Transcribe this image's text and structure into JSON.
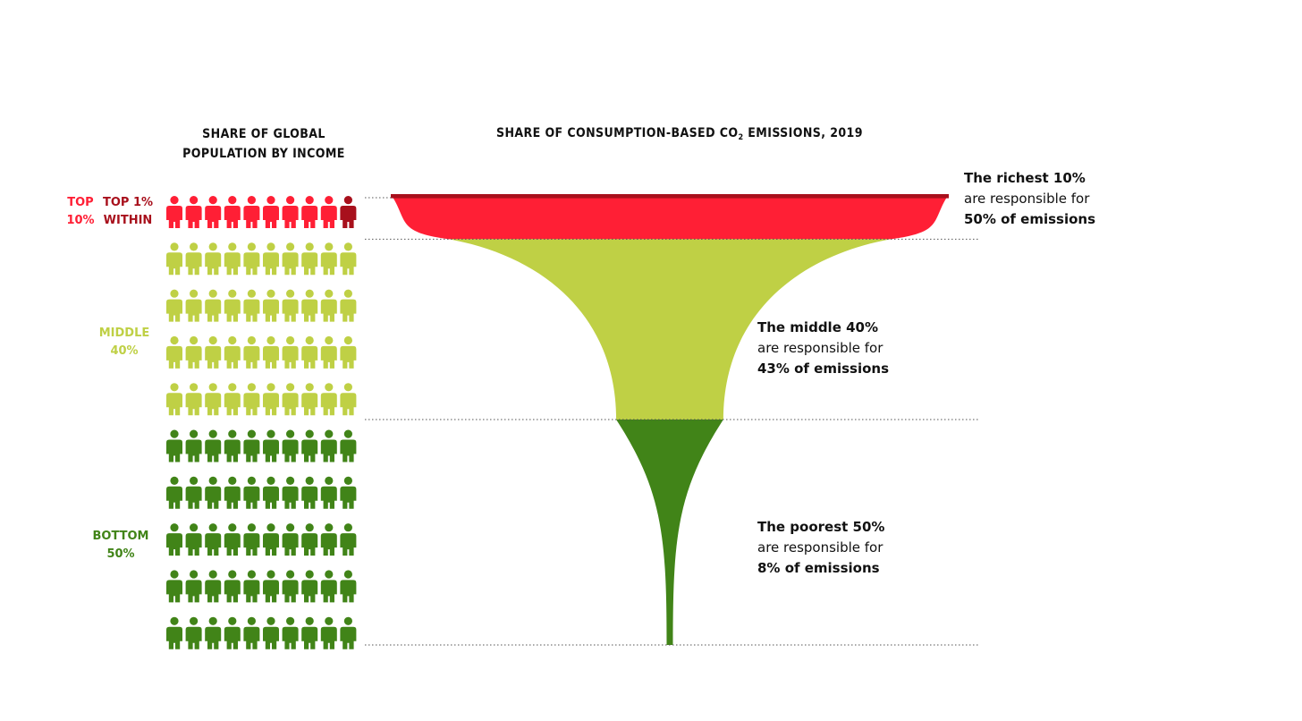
{
  "chart_data": {
    "type": "funnel",
    "population_title_lines": [
      "SHARE OF GLOBAL",
      "POPULATION BY INCOME"
    ],
    "emissions_title_main": "SHARE OF CONSUMPTION-BASED CO",
    "emissions_title_sub": "2",
    "emissions_title_rest": " EMISSIONS, 2019",
    "groups": [
      {
        "key": "top",
        "label_lines": [
          "TOP",
          "10%"
        ],
        "inner_label_lines": [
          "TOP 1%",
          "WITHIN"
        ],
        "population_share": 10,
        "emissions_share": 50,
        "color": "#ff1f35",
        "highlight_color": "#a8101c",
        "annotation": [
          "The richest 10%",
          "are responsible for",
          "50% of emissions"
        ]
      },
      {
        "key": "middle",
        "label_lines": [
          "MIDDLE",
          "40%"
        ],
        "population_share": 40,
        "emissions_share": 43,
        "color": "#bfd045",
        "annotation": [
          "The middle 40%",
          "are responsible for",
          "43% of emissions"
        ]
      },
      {
        "key": "bottom",
        "label_lines": [
          "BOTTOM",
          "50%"
        ],
        "population_share": 50,
        "emissions_share": 8,
        "color": "#418418",
        "annotation": [
          "The poorest 50%",
          "are responsible for",
          "8% of emissions"
        ]
      }
    ],
    "top1_within_top10": 1
  }
}
